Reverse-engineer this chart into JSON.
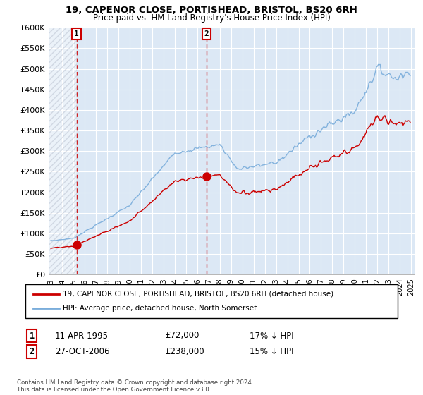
{
  "title": "19, CAPENOR CLOSE, PORTISHEAD, BRISTOL, BS20 6RH",
  "subtitle": "Price paid vs. HM Land Registry's House Price Index (HPI)",
  "ylabel_ticks": [
    "£0",
    "£50K",
    "£100K",
    "£150K",
    "£200K",
    "£250K",
    "£300K",
    "£350K",
    "£400K",
    "£450K",
    "£500K",
    "£550K",
    "£600K"
  ],
  "ytick_values": [
    0,
    50000,
    100000,
    150000,
    200000,
    250000,
    300000,
    350000,
    400000,
    450000,
    500000,
    550000,
    600000
  ],
  "sale1_year": 1995.28,
  "sale1_price": 72000,
  "sale1_label": "1",
  "sale1_date": "11-APR-1995",
  "sale1_pct": "17% ↓ HPI",
  "sale2_year": 2006.83,
  "sale2_price": 238000,
  "sale2_label": "2",
  "sale2_date": "27-OCT-2006",
  "sale2_pct": "15% ↓ HPI",
  "legend_property": "19, CAPENOR CLOSE, PORTISHEAD, BRISTOL, BS20 6RH (detached house)",
  "legend_hpi": "HPI: Average price, detached house, North Somerset",
  "footer": "Contains HM Land Registry data © Crown copyright and database right 2024.\nThis data is licensed under the Open Government Licence v3.0.",
  "property_color": "#cc0000",
  "hpi_color": "#7aaddb",
  "background_color": "#dce8f5",
  "grid_color": "#ffffff",
  "xmin": 1993.0,
  "xmax": 2025.3,
  "ymin": 0,
  "ymax": 600000
}
